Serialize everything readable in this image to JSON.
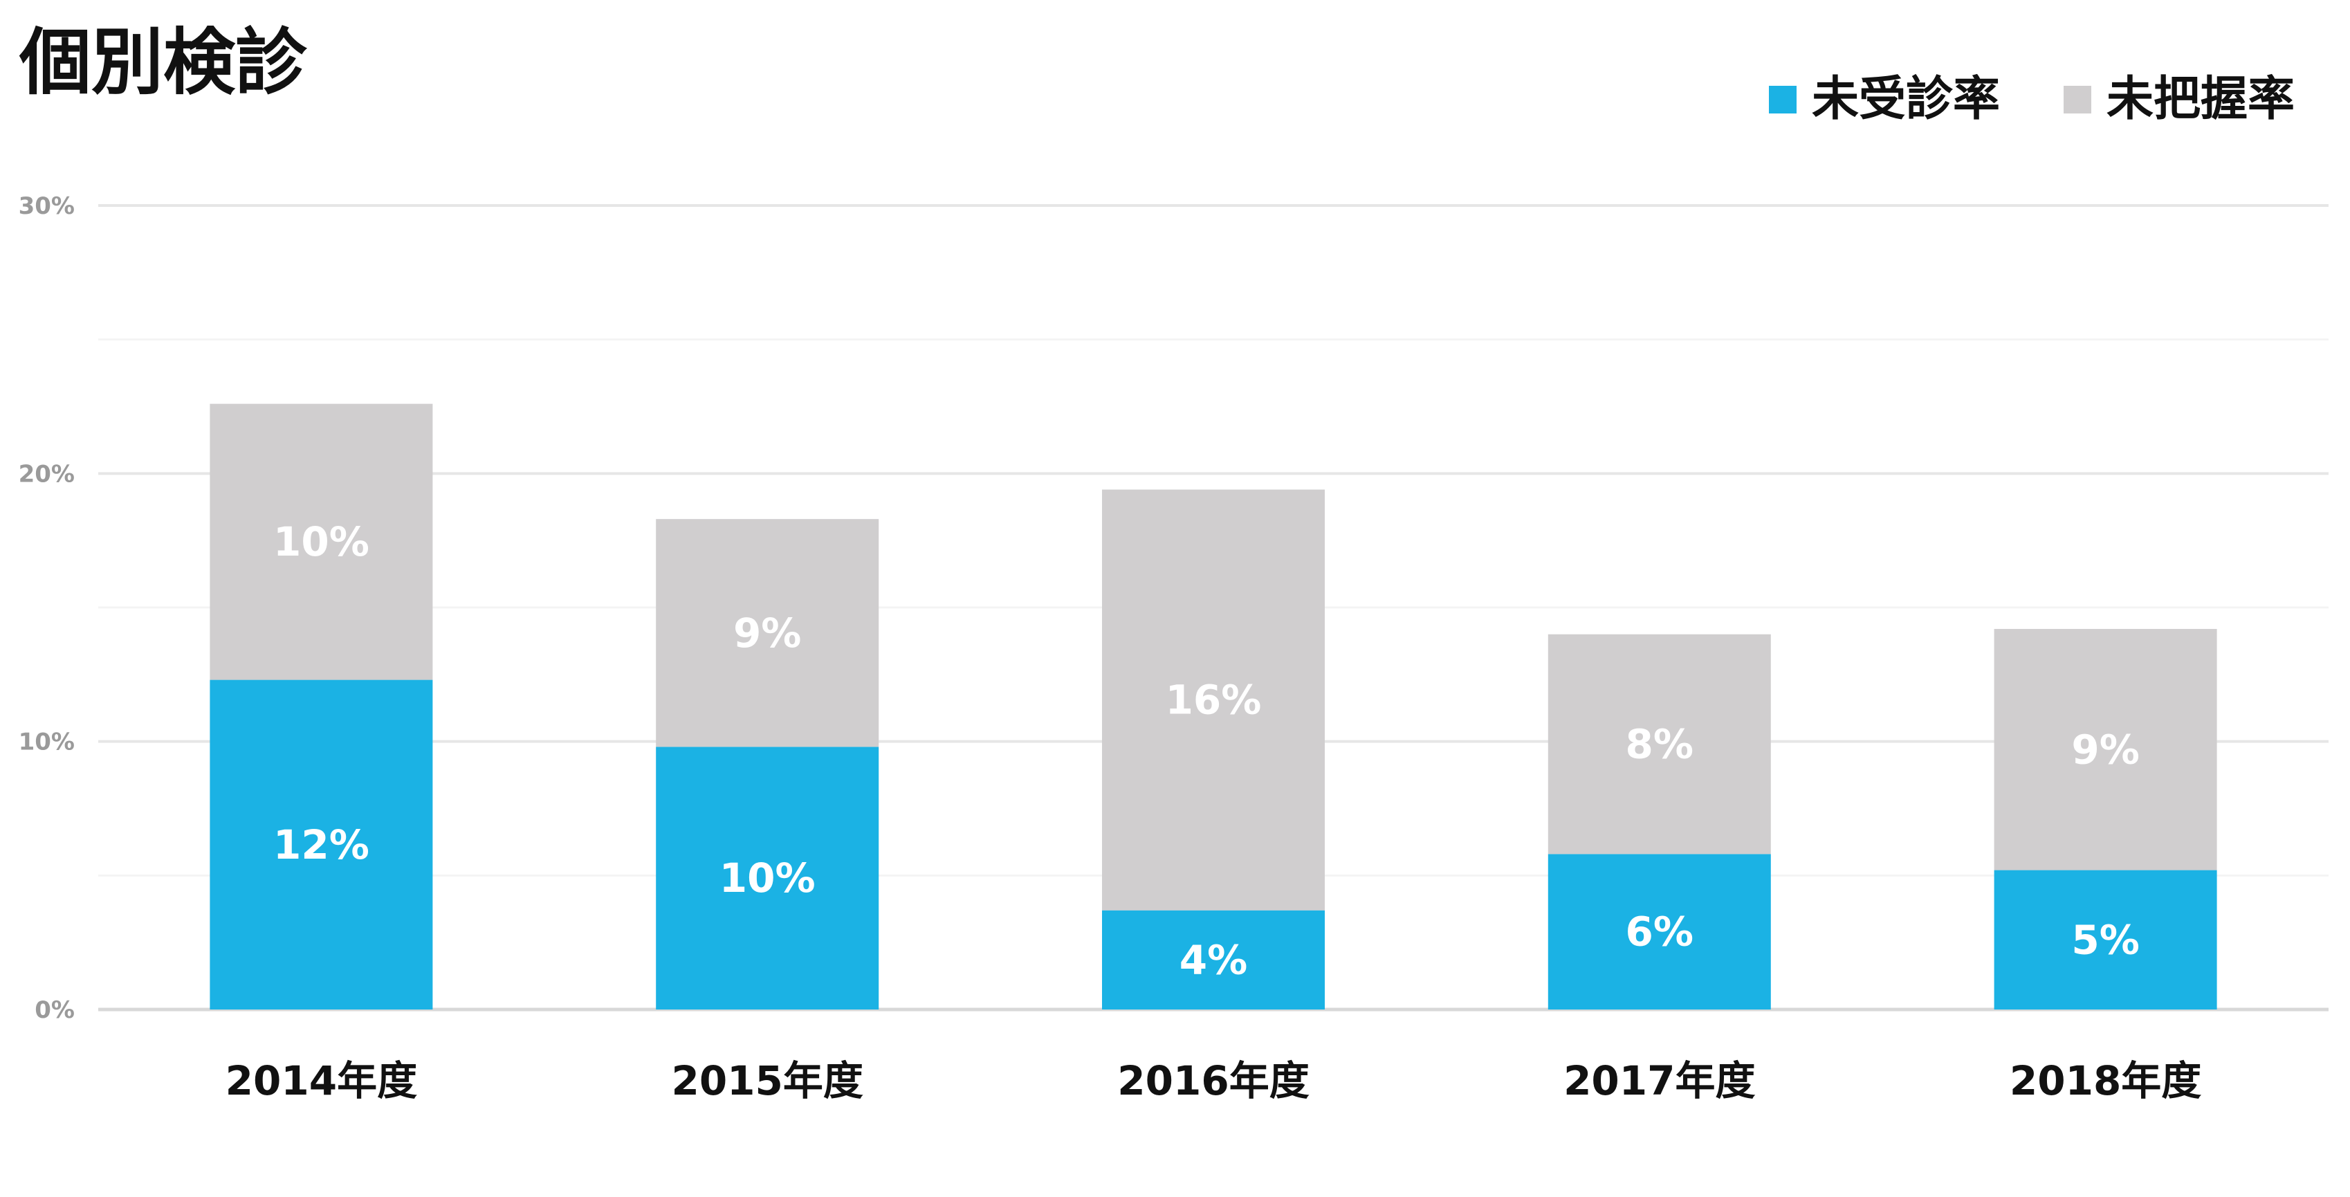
{
  "colors": {
    "series_1": "#1BB2E4",
    "series_2": "#D0CECF",
    "grid_major": "#e6e6e6",
    "grid_minor": "#f4f4f4",
    "axis_line": "#d8d8d8",
    "label_text": "#ffffff"
  },
  "chart_data": {
    "type": "bar",
    "stacked": true,
    "title": "個別検診",
    "xlabel": "",
    "ylabel": "",
    "categories": [
      "2014年度",
      "2015年度",
      "2016年度",
      "2017年度",
      "2018年度"
    ],
    "series": [
      {
        "name": "未受診率",
        "values": [
          12.3,
          9.8,
          3.7,
          5.8,
          5.2
        ],
        "labels": [
          "12%",
          "10%",
          "4%",
          "6%",
          "5%"
        ],
        "color": "#1BB2E4"
      },
      {
        "name": "未把握率",
        "values": [
          10.3,
          8.5,
          15.7,
          8.2,
          9.0
        ],
        "labels": [
          "10%",
          "9%",
          "16%",
          "8%",
          "9%"
        ],
        "color": "#D0CECF"
      }
    ],
    "ylim": [
      0,
      30
    ],
    "yticks": [
      0,
      10,
      20,
      30
    ],
    "ytick_labels": [
      "0%",
      "10%",
      "20%",
      "30%"
    ],
    "minor_grid_every": 5,
    "grid": true,
    "legend": "top-right"
  }
}
